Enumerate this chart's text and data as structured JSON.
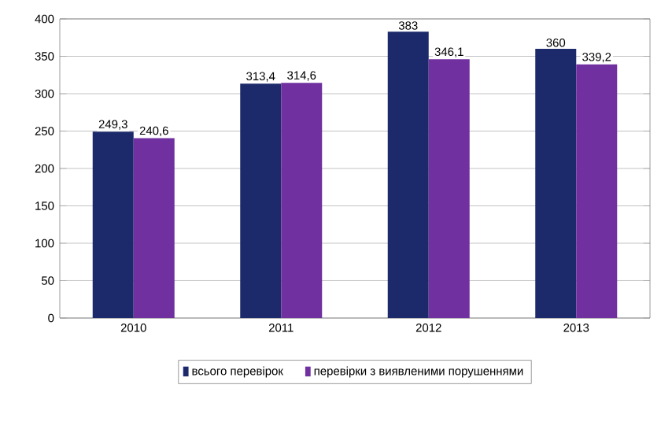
{
  "chart_data": {
    "type": "bar",
    "categories": [
      "2010",
      "2011",
      "2012",
      "2013"
    ],
    "series": [
      {
        "name": "всього перевірок",
        "color": "#1c2a6b",
        "values": [
          249.3,
          313.4,
          383,
          360
        ],
        "value_labels": [
          "249,3",
          "313,4",
          "383",
          "360"
        ]
      },
      {
        "name": "перевірки з виявленими порушеннями",
        "color": "#7030a0",
        "values": [
          240.6,
          314.6,
          346.1,
          339.2
        ],
        "value_labels": [
          "240,6",
          "314,6",
          "346,1",
          "339,2"
        ]
      }
    ],
    "ylim": [
      0,
      400
    ],
    "yticks": [
      0,
      50,
      100,
      150,
      200,
      250,
      300,
      350,
      400
    ],
    "grid": "y",
    "legend": "bottom"
  }
}
